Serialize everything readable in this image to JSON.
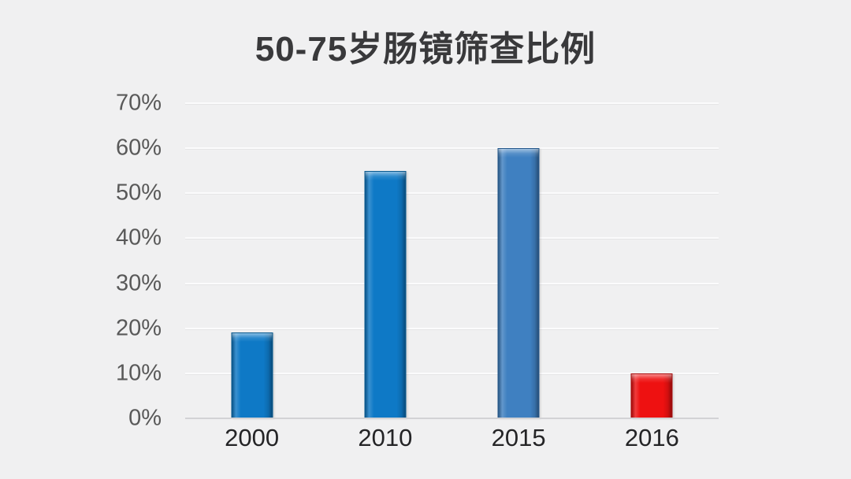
{
  "title": "50-75岁肠镜筛查比例",
  "colors": {
    "background": "#f0f0f1",
    "gridline": "#fbfbfc",
    "axis_line": "#d2d2d5",
    "y_tick_label": "#595959",
    "x_tick_label": "#242426",
    "title": "#39393b",
    "bar_blue": "#0e79c6",
    "bar_blue_light": "#3f80c1",
    "bar_red": "#ee1111"
  },
  "chart_data": {
    "type": "bar",
    "title": "50-75岁肠镜筛查比例",
    "categories": [
      "2000",
      "2010",
      "2015",
      "2016"
    ],
    "values": [
      19,
      55,
      60,
      10
    ],
    "value_unit": "%",
    "series": [
      {
        "name": "50-75岁肠镜筛查比例",
        "values": [
          19,
          55,
          60,
          10
        ]
      }
    ],
    "bar_colors": [
      "#0e79c6",
      "#0e79c6",
      "#3f80c1",
      "#ee1111"
    ],
    "bar_edge_colors": [
      "#0a5a8f",
      "#0a5a8f",
      "#24578a",
      "#a80c0c"
    ],
    "xlabel": "",
    "ylabel": "",
    "ylim": [
      0,
      70
    ],
    "ytick_step": 10,
    "yticks": [
      "0%",
      "10%",
      "20%",
      "30%",
      "40%",
      "50%",
      "60%",
      "70%"
    ],
    "grid": true,
    "legend": false
  }
}
